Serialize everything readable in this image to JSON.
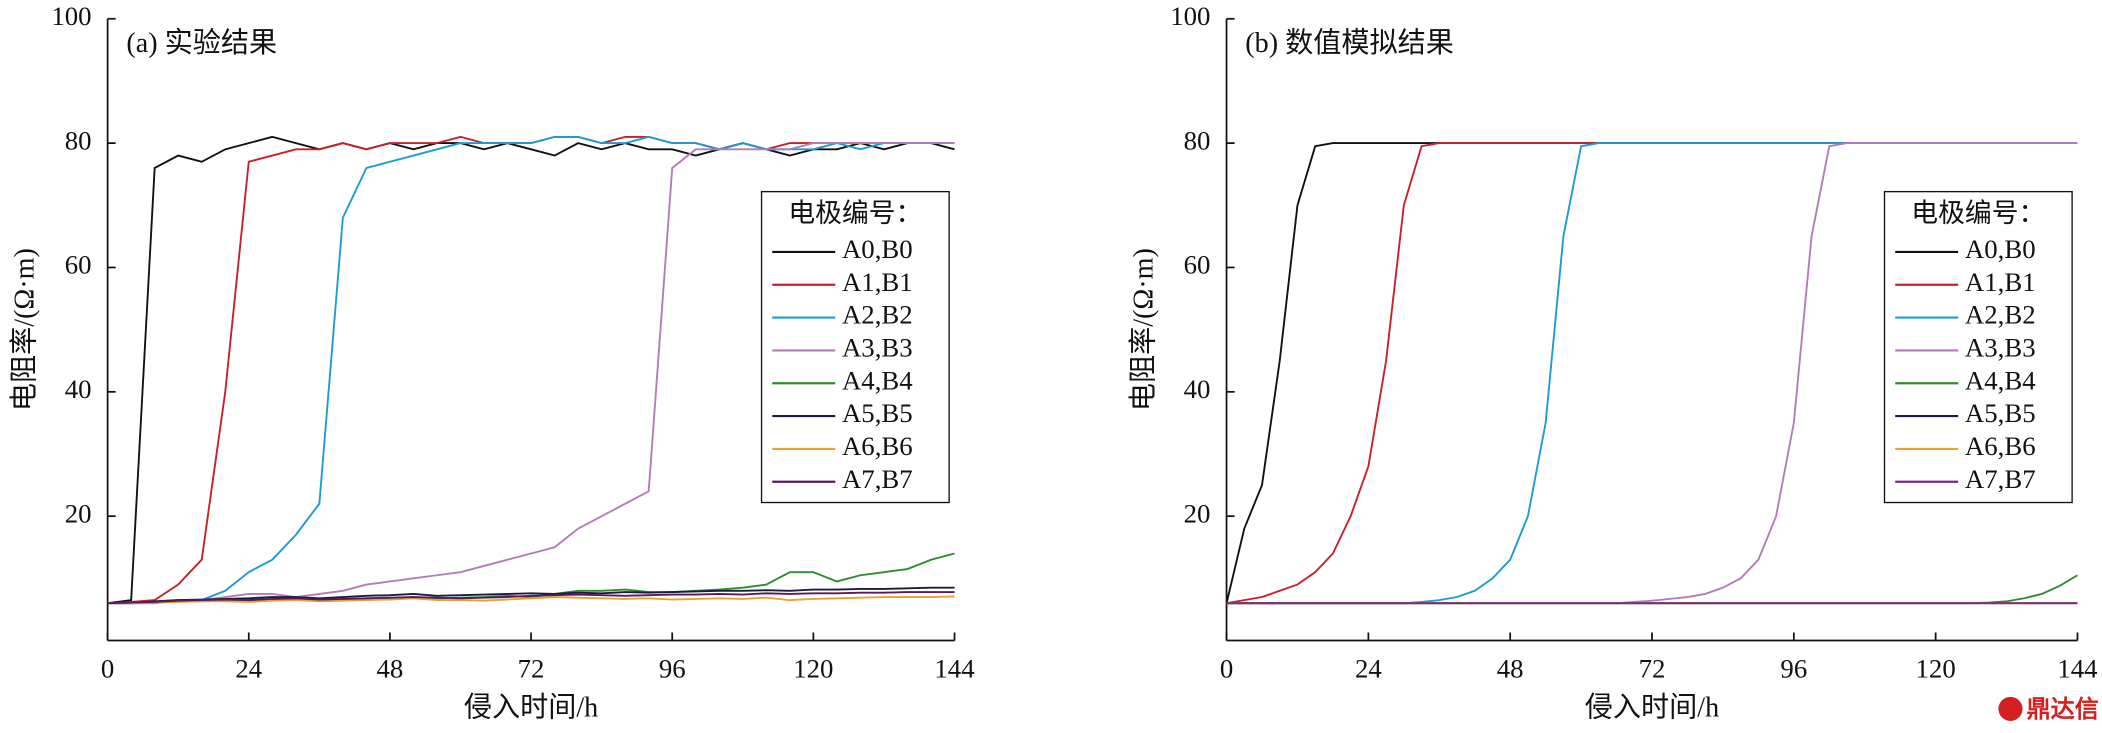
{
  "chart_data": [
    {
      "type": "line",
      "title": "(a) 实验结果",
      "x_label": "侵入时间/h",
      "y_label": "电阻率/(Ω·m)",
      "legend_title": "电极编号：",
      "legend": "right",
      "xlim": [
        0,
        144
      ],
      "ylim": [
        0,
        100
      ],
      "xticks": [
        0,
        24,
        48,
        72,
        96,
        120,
        144
      ],
      "yticks": [
        20,
        40,
        60,
        80,
        100
      ],
      "x": [
        0,
        4,
        8,
        12,
        16,
        20,
        24,
        28,
        32,
        36,
        40,
        44,
        48,
        52,
        56,
        60,
        64,
        68,
        72,
        76,
        80,
        84,
        88,
        92,
        96,
        100,
        104,
        108,
        112,
        116,
        120,
        124,
        128,
        132,
        136,
        140,
        144
      ],
      "series": [
        {
          "name": "A0,B0",
          "color": "#111111",
          "values": [
            6,
            6.5,
            76,
            78,
            77,
            79,
            80,
            81,
            80,
            79,
            80,
            79,
            80,
            79,
            80,
            80,
            79,
            80,
            79,
            78,
            80,
            79,
            80,
            79,
            79,
            78,
            79,
            80,
            79,
            78,
            79,
            79,
            80,
            79,
            80,
            80,
            79
          ]
        },
        {
          "name": "A1,B1",
          "color": "#c8202a",
          "values": [
            6,
            6.2,
            6.5,
            9,
            13,
            40,
            77,
            78,
            79,
            79,
            80,
            79,
            80,
            80,
            80,
            81,
            80,
            80,
            80,
            81,
            81,
            80,
            81,
            81,
            80,
            80,
            79,
            80,
            79,
            80,
            80,
            80,
            80,
            80,
            80,
            80,
            80
          ]
        },
        {
          "name": "A2,B2",
          "color": "#1b9ad6",
          "values": [
            6,
            6,
            6,
            6.5,
            6.5,
            8,
            11,
            13,
            17,
            22,
            68,
            76,
            77,
            78,
            79,
            80,
            80,
            80,
            80,
            81,
            81,
            80,
            80,
            81,
            80,
            80,
            79,
            80,
            79,
            79,
            79,
            80,
            79,
            80,
            80,
            80,
            80
          ]
        },
        {
          "name": "A3,B3",
          "color": "#b27cb8",
          "values": [
            6,
            6,
            6,
            6.5,
            6.5,
            7,
            7.5,
            7.5,
            7,
            7.5,
            8,
            9,
            9.5,
            10,
            10.5,
            11,
            12,
            13,
            14,
            15,
            18,
            20,
            22,
            24,
            76,
            79,
            79,
            79,
            79,
            79,
            80,
            80,
            80,
            80,
            80,
            80,
            80
          ]
        },
        {
          "name": "A4,B4",
          "color": "#2e8b2e",
          "values": [
            6,
            6,
            6.2,
            6.3,
            6.3,
            6.5,
            6.4,
            6.5,
            6.6,
            6.5,
            6.6,
            6.8,
            6.7,
            7,
            6.8,
            6.9,
            7,
            7.2,
            7,
            7.5,
            8,
            8,
            8.2,
            7.8,
            7.8,
            8,
            8.2,
            8.5,
            9,
            11,
            11,
            9.5,
            10.5,
            11,
            11.5,
            13,
            14
          ]
        },
        {
          "name": "A5,B5",
          "color": "#1c1c40",
          "values": [
            6,
            6,
            6.3,
            6.5,
            6.6,
            6.7,
            6.8,
            7,
            7,
            6.8,
            7,
            7.2,
            7.3,
            7.5,
            7.2,
            7.3,
            7.4,
            7.5,
            7.6,
            7.5,
            7.7,
            7.6,
            7.8,
            7.7,
            7.8,
            7.9,
            8,
            8,
            8.1,
            8,
            8.2,
            8.2,
            8.3,
            8.3,
            8.4,
            8.5,
            8.5
          ]
        },
        {
          "name": "A6,B6",
          "color": "#e8a030",
          "values": [
            6,
            6,
            6.1,
            6.2,
            6.3,
            6.3,
            6.2,
            6.4,
            6.5,
            6.3,
            6.4,
            6.5,
            6.6,
            6.8,
            6.5,
            6.5,
            6.4,
            6.6,
            6.8,
            7,
            6.9,
            6.8,
            6.7,
            6.8,
            6.6,
            6.7,
            6.8,
            6.7,
            6.9,
            6.5,
            6.7,
            6.8,
            6.9,
            7,
            7,
            7,
            7.1
          ]
        },
        {
          "name": "A7,B7",
          "color": "#5a1a5a",
          "values": [
            6,
            6.1,
            6.2,
            6.4,
            6.5,
            6.6,
            6.5,
            6.7,
            6.8,
            6.6,
            6.7,
            6.8,
            6.9,
            7,
            6.9,
            6.8,
            6.9,
            7,
            7.2,
            7.3,
            7.4,
            7.3,
            7.2,
            7.3,
            7.4,
            7.4,
            7.5,
            7.4,
            7.6,
            7.5,
            7.6,
            7.6,
            7.7,
            7.7,
            7.8,
            7.8,
            7.8
          ]
        }
      ]
    },
    {
      "type": "line",
      "title": "(b) 数值模拟结果",
      "x_label": "侵入时间/h",
      "y_label": "电阻率/(Ω·m)",
      "legend_title": "电极编号：",
      "legend": "right",
      "xlim": [
        0,
        144
      ],
      "ylim": [
        0,
        100
      ],
      "xticks": [
        0,
        24,
        48,
        72,
        96,
        120,
        144
      ],
      "yticks": [
        20,
        40,
        60,
        80,
        100
      ],
      "x": [
        0,
        3,
        6,
        9,
        12,
        15,
        18,
        21,
        24,
        27,
        30,
        33,
        36,
        39,
        42,
        45,
        48,
        51,
        54,
        57,
        60,
        63,
        66,
        69,
        72,
        75,
        78,
        81,
        84,
        87,
        90,
        93,
        96,
        99,
        102,
        105,
        108,
        111,
        114,
        117,
        120,
        123,
        126,
        129,
        132,
        135,
        138,
        141,
        144
      ],
      "series": [
        {
          "name": "A0,B0",
          "color": "#111111",
          "values": [
            6,
            18,
            25,
            45,
            70,
            79.5,
            80,
            80,
            80,
            80,
            80,
            80,
            80,
            80,
            80,
            80,
            80,
            80,
            80,
            80,
            80,
            80,
            80,
            80,
            80,
            80,
            80,
            80,
            80,
            80,
            80,
            80,
            80,
            80,
            80,
            80,
            80,
            80,
            80,
            80,
            80,
            80,
            80,
            80,
            80,
            80,
            80,
            80,
            80
          ]
        },
        {
          "name": "A1,B1",
          "color": "#c8202a",
          "values": [
            6,
            6.5,
            7,
            8,
            9,
            11,
            14,
            20,
            28,
            45,
            70,
            79.5,
            80,
            80,
            80,
            80,
            80,
            80,
            80,
            80,
            80,
            80,
            80,
            80,
            80,
            80,
            80,
            80,
            80,
            80,
            80,
            80,
            80,
            80,
            80,
            80,
            80,
            80,
            80,
            80,
            80,
            80,
            80,
            80,
            80,
            80,
            80,
            80,
            80
          ]
        },
        {
          "name": "A2,B2",
          "color": "#1b9ad6",
          "values": [
            6,
            6,
            6,
            6,
            6,
            6,
            6,
            6,
            6,
            6,
            6,
            6.2,
            6.5,
            7,
            8,
            10,
            13,
            20,
            35,
            65,
            79.5,
            80,
            80,
            80,
            80,
            80,
            80,
            80,
            80,
            80,
            80,
            80,
            80,
            80,
            80,
            80,
            80,
            80,
            80,
            80,
            80,
            80,
            80,
            80,
            80,
            80,
            80,
            80,
            80
          ]
        },
        {
          "name": "A3,B3",
          "color": "#b27cb8",
          "values": [
            6,
            6,
            6,
            6,
            6,
            6,
            6,
            6,
            6,
            6,
            6,
            6,
            6,
            6,
            6,
            6,
            6,
            6,
            6,
            6,
            6,
            6,
            6,
            6.2,
            6.4,
            6.7,
            7,
            7.5,
            8.5,
            10,
            13,
            20,
            35,
            65,
            79.5,
            80,
            80,
            80,
            80,
            80,
            80,
            80,
            80,
            80,
            80,
            80,
            80,
            80,
            80
          ]
        },
        {
          "name": "A4,B4",
          "color": "#2e8b2e",
          "values": [
            6,
            6,
            6,
            6,
            6,
            6,
            6,
            6,
            6,
            6,
            6,
            6,
            6,
            6,
            6,
            6,
            6,
            6,
            6,
            6,
            6,
            6,
            6,
            6,
            6,
            6,
            6,
            6,
            6,
            6,
            6,
            6,
            6,
            6,
            6,
            6,
            6,
            6,
            6,
            6,
            6,
            6,
            6,
            6.1,
            6.3,
            6.8,
            7.5,
            8.8,
            10.5
          ]
        },
        {
          "name": "A5,B5",
          "color": "#1c1c40",
          "values": [
            6,
            6,
            6,
            6,
            6,
            6,
            6,
            6,
            6,
            6,
            6,
            6,
            6,
            6,
            6,
            6,
            6,
            6,
            6,
            6,
            6,
            6,
            6,
            6,
            6,
            6,
            6,
            6,
            6,
            6,
            6,
            6,
            6,
            6,
            6,
            6,
            6,
            6,
            6,
            6,
            6,
            6,
            6,
            6,
            6,
            6,
            6,
            6,
            6
          ]
        },
        {
          "name": "A6,B6",
          "color": "#e8a030",
          "values": [
            6,
            6,
            6,
            6,
            6,
            6,
            6,
            6,
            6,
            6,
            6,
            6,
            6,
            6,
            6,
            6,
            6,
            6,
            6,
            6,
            6,
            6,
            6,
            6,
            6,
            6,
            6,
            6,
            6,
            6,
            6,
            6,
            6,
            6,
            6,
            6,
            6,
            6,
            6,
            6,
            6,
            6,
            6,
            6,
            6,
            6,
            6,
            6,
            6
          ]
        },
        {
          "name": "A7,B7",
          "color": "#7a2a8a",
          "values": [
            6,
            6,
            6,
            6,
            6,
            6,
            6,
            6,
            6,
            6,
            6,
            6,
            6,
            6,
            6,
            6,
            6,
            6,
            6,
            6,
            6,
            6,
            6,
            6,
            6,
            6,
            6,
            6,
            6,
            6,
            6,
            6,
            6,
            6,
            6,
            6,
            6,
            6,
            6,
            6,
            6,
            6,
            6,
            6,
            6,
            6,
            6,
            6,
            6
          ]
        }
      ]
    }
  ],
  "watermark": "鼎达信"
}
